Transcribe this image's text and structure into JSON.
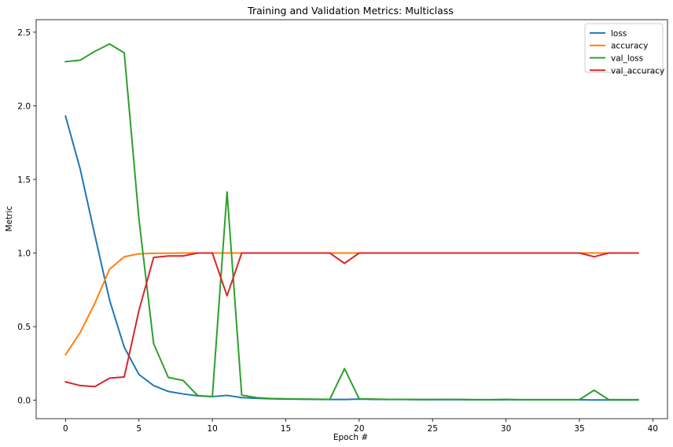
{
  "chart_data": {
    "type": "line",
    "title": "Training and Validation Metrics: Multiclass",
    "xlabel": "Epoch #",
    "ylabel": "Metric",
    "xlim": [
      -2,
      41
    ],
    "ylim": [
      -0.125,
      2.585
    ],
    "xticks": [
      0,
      5,
      10,
      15,
      20,
      25,
      30,
      35,
      40
    ],
    "yticks": [
      0.0,
      0.5,
      1.0,
      1.5,
      2.0,
      2.5
    ],
    "xtick_labels": [
      "0",
      "5",
      "10",
      "15",
      "20",
      "25",
      "30",
      "35",
      "40"
    ],
    "ytick_labels": [
      "0.0",
      "0.5",
      "1.0",
      "1.5",
      "2.0",
      "2.5"
    ],
    "grid": false,
    "legend_position": "top-right",
    "x": [
      0,
      1,
      2,
      3,
      4,
      5,
      6,
      7,
      8,
      9,
      10,
      11,
      12,
      13,
      14,
      15,
      16,
      17,
      18,
      19,
      20,
      21,
      22,
      23,
      24,
      25,
      26,
      27,
      28,
      29,
      30,
      31,
      32,
      33,
      34,
      35,
      36,
      37,
      38,
      39
    ],
    "series": [
      {
        "name": "loss",
        "color": "#1f77b4",
        "values": [
          1.93,
          1.57,
          1.12,
          0.68,
          0.36,
          0.175,
          0.1,
          0.06,
          0.043,
          0.03,
          0.025,
          0.033,
          0.018,
          0.013,
          0.01,
          0.008,
          0.007,
          0.006,
          0.005,
          0.005,
          0.008,
          0.006,
          0.005,
          0.005,
          0.004,
          0.004,
          0.004,
          0.004,
          0.003,
          0.003,
          0.004,
          0.003,
          0.003,
          0.003,
          0.003,
          0.003,
          0.002,
          0.002,
          0.002,
          0.002
        ]
      },
      {
        "name": "accuracy",
        "color": "#ff7f0e",
        "values": [
          0.31,
          0.46,
          0.66,
          0.89,
          0.975,
          0.995,
          0.998,
          0.999,
          1.0,
          1.0,
          1.0,
          1.0,
          1.0,
          1.0,
          1.0,
          1.0,
          1.0,
          1.0,
          1.0,
          1.0,
          1.0,
          1.0,
          1.0,
          1.0,
          1.0,
          1.0,
          1.0,
          1.0,
          1.0,
          1.0,
          1.0,
          1.0,
          1.0,
          1.0,
          1.0,
          1.0,
          1.0,
          1.0,
          1.0,
          1.0
        ]
      },
      {
        "name": "val_loss",
        "color": "#2ca02c",
        "values": [
          2.3,
          2.31,
          2.37,
          2.42,
          2.36,
          1.23,
          0.385,
          0.155,
          0.135,
          0.032,
          0.025,
          1.415,
          0.035,
          0.018,
          0.012,
          0.01,
          0.008,
          0.007,
          0.006,
          0.215,
          0.01,
          0.008,
          0.006,
          0.006,
          0.005,
          0.005,
          0.006,
          0.005,
          0.004,
          0.004,
          0.006,
          0.004,
          0.004,
          0.004,
          0.004,
          0.004,
          0.068,
          0.004,
          0.004,
          0.004
        ]
      },
      {
        "name": "val_accuracy",
        "color": "#d62728",
        "values": [
          0.125,
          0.1,
          0.093,
          0.15,
          0.158,
          0.61,
          0.97,
          0.98,
          0.98,
          1.0,
          1.0,
          0.71,
          1.0,
          1.0,
          1.0,
          1.0,
          1.0,
          1.0,
          1.0,
          0.93,
          1.0,
          1.0,
          1.0,
          1.0,
          1.0,
          1.0,
          1.0,
          1.0,
          1.0,
          1.0,
          1.0,
          1.0,
          1.0,
          1.0,
          1.0,
          1.0,
          0.975,
          1.0,
          1.0,
          1.0
        ]
      }
    ]
  }
}
